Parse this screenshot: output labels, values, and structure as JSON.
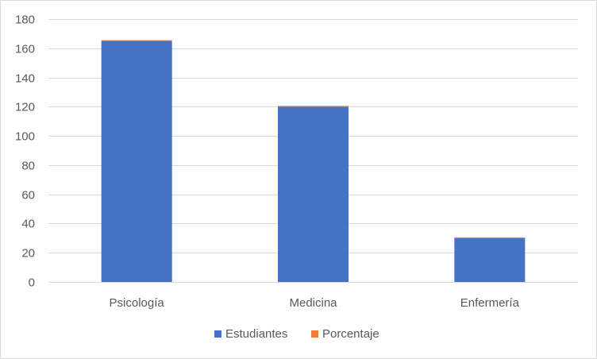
{
  "chart_data": {
    "type": "bar",
    "stacked": true,
    "categories": [
      "Psicología",
      "Medicina",
      "Enfermería"
    ],
    "series": [
      {
        "name": "Estudiantes",
        "values": [
          165,
          120,
          30
        ],
        "color": "#4472C4"
      },
      {
        "name": "Porcentaje",
        "values": [
          0.52,
          0.38,
          0.1
        ],
        "color": "#ED7D31"
      }
    ],
    "ylim": [
      0,
      180
    ],
    "yticks": [
      0,
      20,
      40,
      60,
      80,
      100,
      120,
      140,
      160,
      180
    ],
    "grid": true,
    "legend": "bottom"
  }
}
